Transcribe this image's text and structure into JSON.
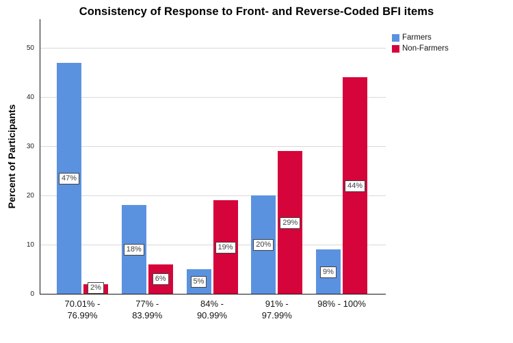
{
  "chart_data": {
    "type": "bar",
    "title": "Consistency of Response to Front- and Reverse-Coded BFI items",
    "ylabel": "Percent of Participants",
    "xlabel": "",
    "categories": [
      "70.01% - 76.99%",
      "77% - 83.99%",
      "84% - 90.99%",
      "91% - 97.99%",
      "98% - 100%"
    ],
    "categories_display": [
      "70.01% -\n76.99%",
      "77% -\n83.99%",
      "84% -\n90.99%",
      "91% -\n97.99%",
      "98% - 100%"
    ],
    "series": [
      {
        "name": "Farmers",
        "color": "#5B92E0",
        "values": [
          47,
          18,
          5,
          20,
          9
        ],
        "labels": [
          "47%",
          "18%",
          "5%",
          "20%",
          "9%"
        ]
      },
      {
        "name": "Non-Farmers",
        "color": "#D5043A",
        "values": [
          2,
          6,
          19,
          29,
          44
        ],
        "labels": [
          "2%",
          "6%",
          "19%",
          "29%",
          "44%"
        ]
      }
    ],
    "ylim": [
      0,
      55
    ],
    "yticks": [
      0,
      10,
      20,
      30,
      40,
      50
    ],
    "grid": true,
    "legend_position": "top-right",
    "bar_label_style": {
      "background": "#FFFFFF",
      "border": "#404040",
      "text": "#404040"
    }
  }
}
